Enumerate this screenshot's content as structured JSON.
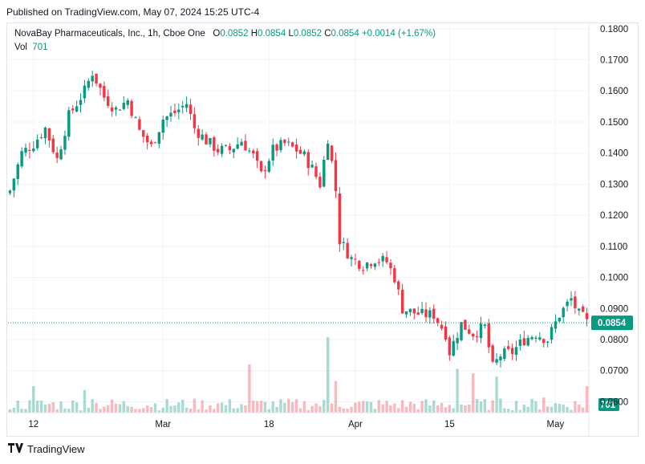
{
  "header": {
    "published": "Published on TradingView.com, May 07, 2024 15:25 UTC-4"
  },
  "legend": {
    "symbol": "NovaBay Pharmaceuticals, Inc., 1h, Cboe One",
    "open_label": "O",
    "open": "0.0852",
    "high_label": "H",
    "high": "0.0854",
    "low_label": "L",
    "low": "0.0852",
    "close_label": "C",
    "close": "0.0854",
    "change": "+0.0014 (+1.67%)",
    "vol_label": "Vol",
    "vol": "701"
  },
  "brand": {
    "name": "TradingView"
  },
  "colors": {
    "up": "#089981",
    "down": "#f23645",
    "grid": "#f0f3fa",
    "price_line": "#089981"
  },
  "chart_data": {
    "type": "candlestick",
    "y_axis": {
      "side": "right",
      "range": [
        0.0565,
        0.1815
      ],
      "ticks": [
        "0.1800",
        "0.1700",
        "0.1600",
        "0.1500",
        "0.1400",
        "0.1300",
        "0.1200",
        "0.1100",
        "0.1000",
        "0.0900",
        "0.0800",
        "0.0700",
        "0.0600"
      ]
    },
    "x_axis": {
      "labels": [
        {
          "text": "12",
          "bar": 6
        },
        {
          "text": "Mar",
          "bar": 39
        },
        {
          "text": "18",
          "bar": 66
        },
        {
          "text": "Apr",
          "bar": 88
        },
        {
          "text": "15",
          "bar": 112
        },
        {
          "text": "May",
          "bar": 139
        }
      ]
    },
    "last_price": "0.0854",
    "last_volume": "701",
    "ohlc_anchors": [
      [
        0,
        0.128
      ],
      [
        3,
        0.14
      ],
      [
        6,
        0.143
      ],
      [
        9,
        0.148
      ],
      [
        12,
        0.138
      ],
      [
        15,
        0.152
      ],
      [
        19,
        0.16
      ],
      [
        21,
        0.166
      ],
      [
        24,
        0.158
      ],
      [
        27,
        0.154
      ],
      [
        30,
        0.157
      ],
      [
        33,
        0.147
      ],
      [
        36,
        0.142
      ],
      [
        39,
        0.151
      ],
      [
        42,
        0.153
      ],
      [
        45,
        0.156
      ],
      [
        47,
        0.148
      ],
      [
        50,
        0.144
      ],
      [
        53,
        0.141
      ],
      [
        56,
        0.141
      ],
      [
        59,
        0.144
      ],
      [
        62,
        0.139
      ],
      [
        64,
        0.133
      ],
      [
        67,
        0.141
      ],
      [
        70,
        0.143
      ],
      [
        73,
        0.141
      ],
      [
        75,
        0.139
      ],
      [
        77,
        0.135
      ],
      [
        79,
        0.13
      ],
      [
        81,
        0.145
      ],
      [
        82,
        0.137
      ],
      [
        83,
        0.128
      ],
      [
        84,
        0.112
      ],
      [
        87,
        0.106
      ],
      [
        90,
        0.104
      ],
      [
        93,
        0.106
      ],
      [
        96,
        0.105
      ],
      [
        98,
        0.1
      ],
      [
        100,
        0.09
      ],
      [
        102,
        0.089
      ],
      [
        105,
        0.088
      ],
      [
        108,
        0.088
      ],
      [
        111,
        0.082
      ],
      [
        112,
        0.076
      ],
      [
        115,
        0.085
      ],
      [
        118,
        0.082
      ],
      [
        121,
        0.084
      ],
      [
        123,
        0.071
      ],
      [
        125,
        0.075
      ],
      [
        128,
        0.076
      ],
      [
        131,
        0.08
      ],
      [
        134,
        0.082
      ],
      [
        137,
        0.08
      ],
      [
        140,
        0.088
      ],
      [
        143,
        0.093
      ],
      [
        145,
        0.088
      ],
      [
        146,
        0.087
      ],
      [
        147,
        0.0854
      ]
    ],
    "volume_spikes": [
      [
        6,
        0.35
      ],
      [
        19,
        0.3
      ],
      [
        21,
        0.18
      ],
      [
        61,
        0.64
      ],
      [
        81,
        1.0
      ],
      [
        83,
        0.42
      ],
      [
        114,
        0.58
      ],
      [
        118,
        0.52
      ],
      [
        124,
        0.48
      ],
      [
        136,
        0.2
      ],
      [
        147,
        0.35
      ]
    ]
  }
}
